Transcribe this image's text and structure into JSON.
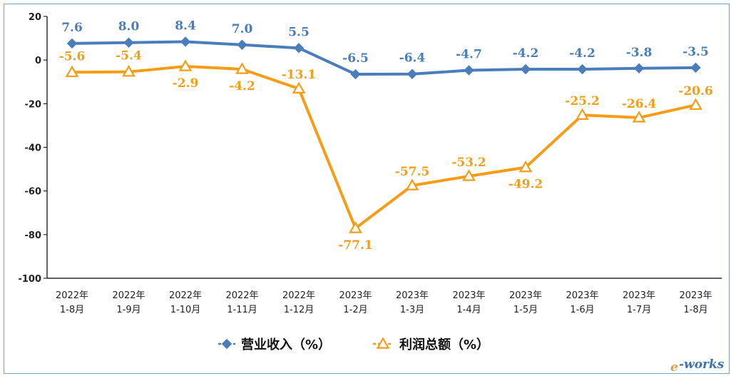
{
  "chart_data": {
    "type": "line",
    "categories": [
      [
        "2022年",
        "1-8月"
      ],
      [
        "2022年",
        "1-9月"
      ],
      [
        "2022年",
        "1-10月"
      ],
      [
        "2022年",
        "1-11月"
      ],
      [
        "2022年",
        "1-12月"
      ],
      [
        "2023年",
        "1-2月"
      ],
      [
        "2023年",
        "1-3月"
      ],
      [
        "2023年",
        "1-4月"
      ],
      [
        "2023年",
        "1-5月"
      ],
      [
        "2023年",
        "1-6月"
      ],
      [
        "2023年",
        "1-7月"
      ],
      [
        "2023年",
        "1-8月"
      ]
    ],
    "series": [
      {
        "name": "营业收入（%）",
        "color": "#4a7ebb",
        "marker": "diamond",
        "values": [
          7.6,
          8.0,
          8.4,
          7.0,
          5.5,
          -6.5,
          -6.4,
          -4.7,
          -4.2,
          -4.2,
          -3.8,
          -3.5
        ],
        "labels": [
          "7.6",
          "8.0",
          "8.4",
          "7.0",
          "5.5",
          "-6.5",
          "-6.4",
          "-4.7",
          "-4.2",
          "-4.2",
          "-3.8",
          "-3.5"
        ]
      },
      {
        "name": "利润总额（%）",
        "color": "#f59d16",
        "marker": "triangle",
        "values": [
          -5.6,
          -5.4,
          -2.9,
          -4.2,
          -13.1,
          -77.1,
          -57.5,
          -53.2,
          -49.2,
          -25.2,
          -26.4,
          -20.6
        ],
        "labels": [
          "-5.6",
          "-5.4",
          "-2.9",
          "-4.2",
          "-13.1",
          "-77.1",
          "-57.5",
          "-53.2",
          "-49.2",
          "-25.2",
          "-26.4",
          "-20.6"
        ]
      }
    ],
    "y_ticks": [
      "20",
      "0",
      "-20",
      "-40",
      "-60",
      "-80",
      "-100"
    ],
    "ylim": [
      -100,
      20
    ],
    "grid": false,
    "legend": "bottom-center",
    "title": "",
    "xlabel": "",
    "ylabel": ""
  },
  "watermark": {
    "text_e": "e",
    "text_rest": "-works"
  }
}
